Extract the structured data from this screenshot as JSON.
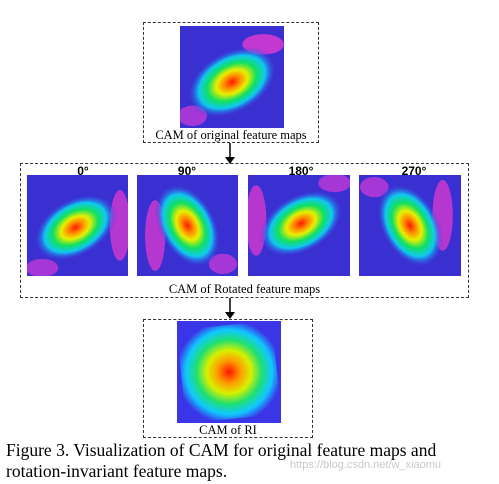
{
  "original": {
    "label": "CAM of original feature maps"
  },
  "rotated": {
    "label": "CAM of Rotated feature maps",
    "angles": [
      "0°",
      "90°",
      "180°",
      "270°"
    ]
  },
  "ri": {
    "label": "CAM of RI"
  },
  "caption": "Figure 3. Visualization of CAM for original feature maps and rotation-invariant feature maps.",
  "watermark": "https://blog.csdn.net/w_xiaomu",
  "colors": {
    "jet_low": "#3a2fd0",
    "jet_peak": "#ff1a00",
    "border": "#333333"
  }
}
